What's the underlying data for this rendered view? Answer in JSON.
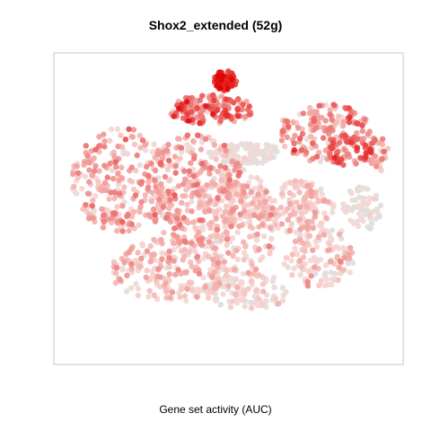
{
  "chart_data": {
    "type": "scatter",
    "title": "Shox2_extended (52g)",
    "xlabel": "Gene set activity (AUC)",
    "ylabel": "",
    "axes_shown": false,
    "grid": false,
    "legend": "none",
    "color_scale": {
      "low": "#dedede",
      "mid": "#f7d6d2",
      "high": "#e00000"
    },
    "seed": 71,
    "regions": [
      {
        "cx": -0.62,
        "cy": 0.2,
        "rx": 0.32,
        "ry": 0.36,
        "n": 260,
        "mean": 0.32,
        "spread": 0.16
      },
      {
        "cx": -0.2,
        "cy": 0.12,
        "rx": 0.3,
        "ry": 0.4,
        "n": 300,
        "mean": 0.3,
        "spread": 0.14
      },
      {
        "cx": -0.35,
        "cy": -0.42,
        "rx": 0.35,
        "ry": 0.22,
        "n": 200,
        "mean": 0.26,
        "spread": 0.12
      },
      {
        "cx": 0.05,
        "cy": -0.1,
        "rx": 0.24,
        "ry": 0.38,
        "n": 200,
        "mean": 0.22,
        "spread": 0.12
      },
      {
        "cx": 0.1,
        "cy": 0.38,
        "rx": 0.22,
        "ry": 0.08,
        "n": 90,
        "mean": 0.05,
        "spread": 0.06
      },
      {
        "cx": 0.36,
        "cy": 0.02,
        "rx": 0.28,
        "ry": 0.18,
        "n": 170,
        "mean": 0.22,
        "spread": 0.12
      },
      {
        "cx": 0.55,
        "cy": -0.32,
        "rx": 0.22,
        "ry": 0.22,
        "n": 130,
        "mean": 0.18,
        "spread": 0.12
      },
      {
        "cx": 0.12,
        "cy": -0.56,
        "rx": 0.26,
        "ry": 0.12,
        "n": 100,
        "mean": 0.12,
        "spread": 0.1
      },
      {
        "cx": 0.8,
        "cy": 0.0,
        "rx": 0.12,
        "ry": 0.15,
        "n": 60,
        "mean": 0.08,
        "spread": 0.08
      },
      {
        "cx": 0.58,
        "cy": 0.52,
        "rx": 0.28,
        "ry": 0.2,
        "n": 170,
        "mean": 0.4,
        "spread": 0.16
      },
      {
        "cx": 0.72,
        "cy": 0.4,
        "rx": 0.14,
        "ry": 0.1,
        "n": 50,
        "mean": 0.58,
        "spread": 0.18
      },
      {
        "cx": -0.1,
        "cy": 0.68,
        "rx": 0.26,
        "ry": 0.1,
        "n": 150,
        "mean": 0.55,
        "spread": 0.17
      },
      {
        "cx": -0.02,
        "cy": 0.88,
        "rx": 0.07,
        "ry": 0.07,
        "n": 60,
        "mean": 0.82,
        "spread": 0.12
      },
      {
        "cx": 0.9,
        "cy": 0.38,
        "rx": 0.06,
        "ry": 0.12,
        "n": 30,
        "mean": 0.35,
        "spread": 0.15
      }
    ]
  }
}
